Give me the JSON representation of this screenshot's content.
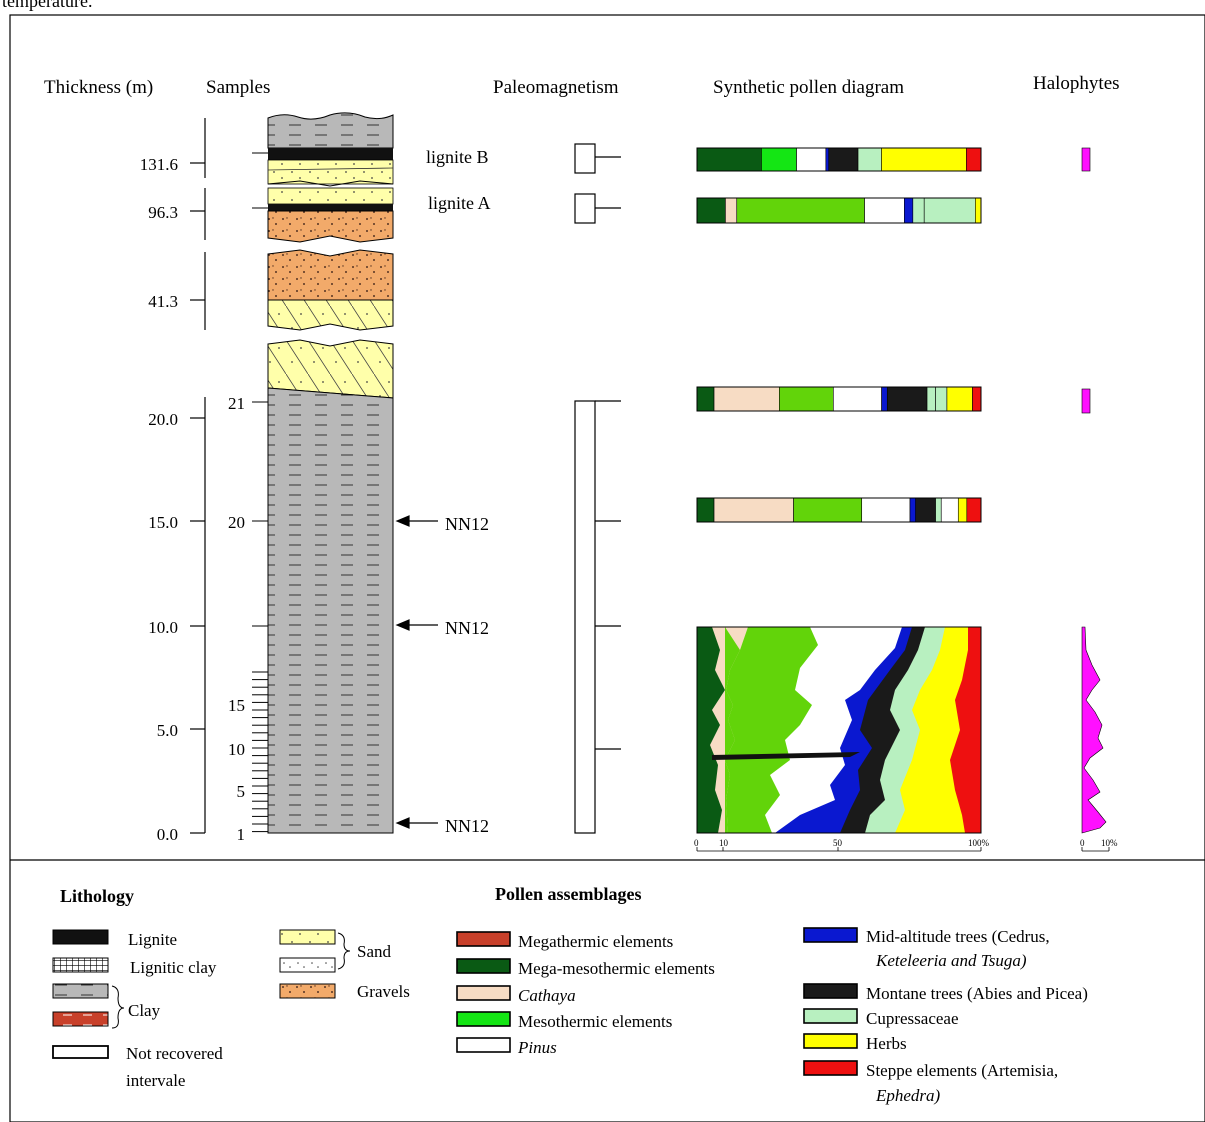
{
  "headers": {
    "thickness": "Thickness (m)",
    "samples": "Samples",
    "paleomagnetism": "Paleomagnetism",
    "pollen": "Synthetic pollen diagram",
    "halophytes": "Halophytes"
  },
  "top_fragment": "temperature.",
  "thickness_ticks": [
    "131.6",
    "96.3",
    "41.3",
    "20.0",
    "15.0",
    "10.0",
    "5.0",
    "0.0"
  ],
  "sample_ticks": [
    "21",
    "20",
    "15",
    "10",
    "5",
    "1"
  ],
  "lignite_labels": [
    "lignite B",
    "lignite A"
  ],
  "nannofossil": [
    "NN12",
    "NN12",
    "NN12"
  ],
  "pollen_axis": [
    "0",
    "10",
    "50",
    "100%"
  ],
  "halo_axis": [
    "0",
    "10%"
  ],
  "colors": {
    "megathermic": "#c8402a",
    "mega_meso": "#0a5a14",
    "cathaya": "#f7dcc4",
    "mesothermic": "#62d40a",
    "mesothermic_alt": "#14e614",
    "pinus": "#ffffff",
    "mid_altitude": "#0a18d0",
    "montane": "#1a1a1a",
    "cupressaceae": "#b8f0c0",
    "herbs": "#ffff00",
    "steppe": "#ee1010",
    "halophytes": "#ff10ff",
    "clay": "#b8b8b8",
    "sand": "#ffffaa",
    "gravels": "#f2aa6a"
  },
  "pollen_bars": [
    {
      "name": "lignite-b",
      "segments": [
        [
          "mega_meso",
          22
        ],
        [
          "mesothermic_alt",
          12
        ],
        [
          "pinus",
          10
        ],
        [
          "mid_altitude",
          1
        ],
        [
          "montane",
          10
        ],
        [
          "cupressaceae",
          8
        ],
        [
          "herbs",
          29
        ],
        [
          "steppe",
          5
        ]
      ]
    },
    {
      "name": "lignite-a",
      "segments": [
        [
          "mega_meso",
          10
        ],
        [
          "cathaya",
          4
        ],
        [
          "mesothermic",
          45
        ],
        [
          "pinus",
          14
        ],
        [
          "mid_altitude",
          3
        ],
        [
          "cupressaceae",
          4
        ],
        [
          "cupressaceae",
          18
        ],
        [
          "herbs",
          2
        ]
      ]
    },
    {
      "name": "sample-21",
      "segments": [
        [
          "mega_meso",
          6
        ],
        [
          "cathaya",
          23
        ],
        [
          "mesothermic",
          19
        ],
        [
          "pinus",
          17
        ],
        [
          "mid_altitude",
          2
        ],
        [
          "montane",
          14
        ],
        [
          "cupressaceae",
          3
        ],
        [
          "cupressaceae",
          4
        ],
        [
          "herbs",
          9
        ],
        [
          "steppe",
          3
        ]
      ]
    },
    {
      "name": "sample-20",
      "segments": [
        [
          "mega_meso",
          6
        ],
        [
          "cathaya",
          28
        ],
        [
          "mesothermic",
          24
        ],
        [
          "pinus",
          17
        ],
        [
          "mid_altitude",
          2
        ],
        [
          "montane",
          7
        ],
        [
          "cupressaceae",
          2
        ],
        [
          "pinus",
          6
        ],
        [
          "herbs",
          3
        ],
        [
          "steppe",
          5
        ]
      ]
    }
  ],
  "halophyte_bars": [
    2.0,
    0.6
  ],
  "legend": {
    "lithology_title": "Lithology",
    "pollen_title": "Pollen assemblages",
    "lithology": [
      {
        "label": "Lignite",
        "key": "lignite"
      },
      {
        "label": "Lignitic clay",
        "key": "lignitic"
      },
      {
        "label": "Clay",
        "key": "clay"
      },
      {
        "label": "Not recovered",
        "key": "none"
      },
      {
        "label": "intervale",
        "key": ""
      }
    ],
    "sand_label": "Sand",
    "gravels_label": "Gravels",
    "pollen_left": [
      {
        "label": "Megathermic elements",
        "key": "megathermic"
      },
      {
        "label": "Mega-mesothermic elements",
        "key": "mega_meso"
      },
      {
        "label": "Cathaya",
        "key": "cathaya"
      },
      {
        "label": "Mesothermic elements",
        "key": "mesothermic_alt"
      },
      {
        "label": "Pinus",
        "key": "pinus"
      }
    ],
    "pollen_right": [
      {
        "label": "Mid-altitude trees (Cedrus,",
        "line2": "Keteleeria and Tsuga)",
        "key": "mid_altitude"
      },
      {
        "label": "Montane trees (Abies and Picea)",
        "line2": "",
        "key": "montane"
      },
      {
        "label": "Cupressaceae",
        "line2": "",
        "key": "cupressaceae"
      },
      {
        "label": "Herbs",
        "line2": "",
        "key": "herbs"
      },
      {
        "label": "Steppe elements (Artemisia,",
        "line2": "Ephedra)",
        "key": "steppe"
      }
    ]
  }
}
